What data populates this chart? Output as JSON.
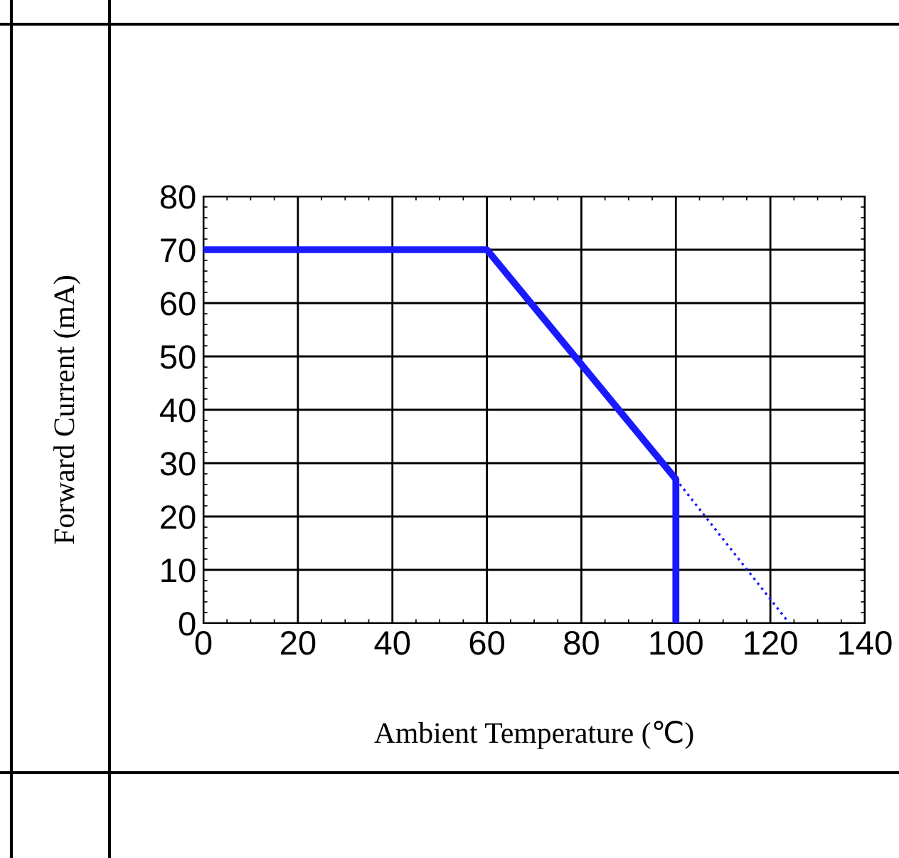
{
  "chart_data": {
    "type": "line",
    "xlabel": "Ambient Temperature (℃)",
    "ylabel": "Forward Current (mA)",
    "series": [
      {
        "color": "#1a1aff",
        "x": [
          0,
          60,
          100,
          100
        ],
        "values": [
          70,
          70,
          27,
          0
        ],
        "line_style": "solid"
      },
      {
        "color": "#1a1aff",
        "x": [
          100,
          124
        ],
        "values": [
          27,
          0
        ],
        "line_style": "dotted"
      }
    ],
    "xlim": [
      0,
      140
    ],
    "ylim": [
      0,
      80
    ],
    "xticks": [
      0,
      20,
      40,
      60,
      80,
      100,
      120,
      140
    ],
    "yticks": [
      0,
      10,
      20,
      30,
      40,
      50,
      60,
      70,
      80
    ],
    "grid": true,
    "marker": "none"
  }
}
